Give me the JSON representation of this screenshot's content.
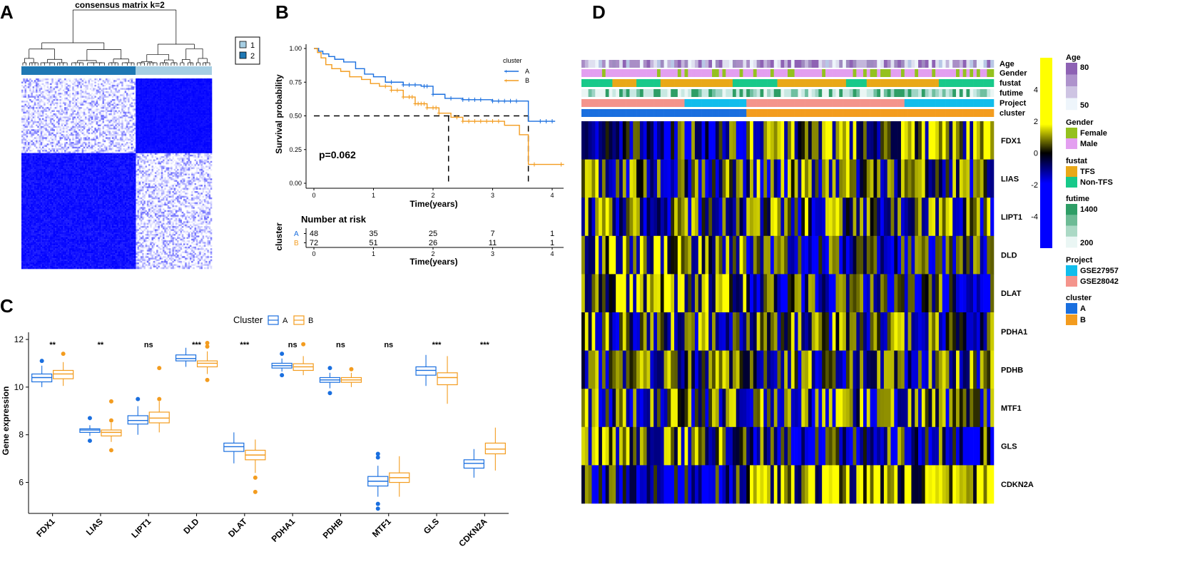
{
  "panels": {
    "A": "A",
    "B": "B",
    "C": "C",
    "D": "D"
  },
  "chart_data": [
    {
      "type": "heatmap",
      "panel": "A",
      "title": "consensus matrix k=2",
      "legend": [
        "1",
        "2"
      ],
      "colors": {
        "cluster1": "#a6cee3",
        "cluster2": "#1f78b4",
        "high": "#0000ff",
        "low": "#ffffff"
      },
      "cluster_sizes": [
        72,
        48
      ]
    },
    {
      "type": "line",
      "panel": "B",
      "subtype": "kaplan-meier",
      "xlabel": "Time(years)",
      "ylabel": "Survival probability",
      "xlim": [
        0,
        4.2
      ],
      "ylim": [
        0,
        1
      ],
      "xticks": [
        "0",
        "1",
        "2",
        "3",
        "4"
      ],
      "yticks": [
        "0.00",
        "0.25",
        "0.50",
        "0.75",
        "1.00"
      ],
      "pvalue": "p=0.062",
      "legend_title": "cluster",
      "series": [
        {
          "name": "A",
          "color": "#1a6fdf",
          "points": [
            [
              0,
              1
            ],
            [
              0.08,
              0.98
            ],
            [
              0.15,
              0.96
            ],
            [
              0.25,
              0.94
            ],
            [
              0.35,
              0.92
            ],
            [
              0.5,
              0.9
            ],
            [
              0.7,
              0.85
            ],
            [
              0.85,
              0.81
            ],
            [
              1.0,
              0.79
            ],
            [
              1.2,
              0.75
            ],
            [
              1.5,
              0.73
            ],
            [
              1.8,
              0.72
            ],
            [
              2.0,
              0.66
            ],
            [
              2.2,
              0.63
            ],
            [
              2.5,
              0.62
            ],
            [
              3.0,
              0.61
            ],
            [
              3.6,
              0.61
            ],
            [
              3.6,
              0.46
            ],
            [
              4.05,
              0.46
            ]
          ],
          "censor": [
            1.3,
            1.5,
            1.6,
            1.7,
            1.85,
            1.9,
            2.0,
            2.3,
            2.5,
            2.6,
            2.7,
            2.8,
            3.0,
            3.1,
            3.2,
            3.3,
            3.4,
            3.8,
            3.9,
            4.0
          ]
        },
        {
          "name": "B",
          "color": "#f39c1f",
          "points": [
            [
              0,
              1
            ],
            [
              0.06,
              0.97
            ],
            [
              0.12,
              0.93
            ],
            [
              0.2,
              0.88
            ],
            [
              0.3,
              0.85
            ],
            [
              0.45,
              0.83
            ],
            [
              0.6,
              0.79
            ],
            [
              0.8,
              0.77
            ],
            [
              0.95,
              0.74
            ],
            [
              1.1,
              0.72
            ],
            [
              1.3,
              0.69
            ],
            [
              1.5,
              0.64
            ],
            [
              1.7,
              0.59
            ],
            [
              1.9,
              0.56
            ],
            [
              2.1,
              0.52
            ],
            [
              2.3,
              0.49
            ],
            [
              2.5,
              0.46
            ],
            [
              3.0,
              0.46
            ],
            [
              3.2,
              0.43
            ],
            [
              3.45,
              0.36
            ],
            [
              3.6,
              0.32
            ],
            [
              3.6,
              0.14
            ],
            [
              4.2,
              0.14
            ]
          ],
          "censor": [
            1.2,
            1.3,
            1.4,
            1.5,
            1.6,
            1.65,
            1.7,
            1.75,
            1.8,
            1.85,
            1.9,
            2.0,
            2.05,
            2.1,
            2.4,
            2.5,
            2.6,
            2.7,
            2.8,
            2.9,
            3.0,
            3.1,
            3.7,
            4.15
          ]
        }
      ],
      "median_lines": {
        "y": 0.5,
        "x": [
          2.26,
          3.6
        ]
      },
      "risk_table": {
        "title": "Number at risk",
        "ylabel": "cluster",
        "xlabel": "Time(years)",
        "times": [
          "0",
          "1",
          "2",
          "3",
          "4"
        ],
        "rows": [
          {
            "group": "A",
            "counts": [
              "48",
              "35",
              "25",
              "7",
              "1"
            ]
          },
          {
            "group": "B",
            "counts": [
              "72",
              "51",
              "26",
              "11",
              "1"
            ]
          }
        ]
      }
    },
    {
      "type": "box",
      "panel": "C",
      "ylabel": "Gene expression",
      "legend_title": "Cluster",
      "legend": [
        "A",
        "B"
      ],
      "ylim": [
        4.7,
        12.3
      ],
      "yticks": [
        "6",
        "8",
        "10",
        "12"
      ],
      "categories": [
        "FDX1",
        "LIAS",
        "LIPT1",
        "DLD",
        "DLAT",
        "PDHA1",
        "PDHB",
        "MTF1",
        "GLS",
        "CDKN2A"
      ],
      "significance": [
        "**",
        "**",
        "ns",
        "***",
        "***",
        "ns",
        "ns",
        "ns",
        "***",
        "***"
      ],
      "series": [
        {
          "name": "A",
          "color": "#1a6fdf",
          "boxes": [
            {
              "min": 10.0,
              "q1": 10.22,
              "median": 10.4,
              "q3": 10.55,
              "max": 10.9,
              "outliers": [
                11.1
              ]
            },
            {
              "min": 7.95,
              "q1": 8.1,
              "median": 8.2,
              "q3": 8.25,
              "max": 8.4,
              "outliers": [
                8.7,
                7.75
              ]
            },
            {
              "min": 8.0,
              "q1": 8.45,
              "median": 8.6,
              "q3": 8.8,
              "max": 9.2,
              "outliers": [
                9.5
              ]
            },
            {
              "min": 10.85,
              "q1": 11.1,
              "median": 11.2,
              "q3": 11.35,
              "max": 11.65,
              "outliers": []
            },
            {
              "min": 6.8,
              "q1": 7.3,
              "median": 7.5,
              "q3": 7.65,
              "max": 8.1,
              "outliers": []
            },
            {
              "min": 10.65,
              "q1": 10.8,
              "median": 10.9,
              "q3": 11.0,
              "max": 11.2,
              "outliers": [
                11.4,
                10.5
              ]
            },
            {
              "min": 9.95,
              "q1": 10.2,
              "median": 10.3,
              "q3": 10.4,
              "max": 10.6,
              "outliers": [
                10.8,
                9.75
              ]
            },
            {
              "min": 5.4,
              "q1": 5.85,
              "median": 6.05,
              "q3": 6.25,
              "max": 6.7,
              "outliers": [
                7.2,
                7.05,
                5.1,
                4.9
              ]
            },
            {
              "min": 10.05,
              "q1": 10.5,
              "median": 10.7,
              "q3": 10.85,
              "max": 11.35,
              "outliers": []
            },
            {
              "min": 6.2,
              "q1": 6.6,
              "median": 6.8,
              "q3": 6.95,
              "max": 7.4,
              "outliers": []
            }
          ]
        },
        {
          "name": "B",
          "color": "#f39c1f",
          "boxes": [
            {
              "min": 10.05,
              "q1": 10.35,
              "median": 10.55,
              "q3": 10.7,
              "max": 11.05,
              "outliers": [
                11.4
              ]
            },
            {
              "min": 7.7,
              "q1": 7.95,
              "median": 8.1,
              "q3": 8.2,
              "max": 8.5,
              "outliers": [
                9.4,
                8.6,
                7.35
              ]
            },
            {
              "min": 8.1,
              "q1": 8.5,
              "median": 8.7,
              "q3": 8.95,
              "max": 9.4,
              "outliers": [
                10.8,
                9.5
              ]
            },
            {
              "min": 10.55,
              "q1": 10.85,
              "median": 11.0,
              "q3": 11.1,
              "max": 11.5,
              "outliers": [
                11.85,
                11.7,
                10.3
              ]
            },
            {
              "min": 6.4,
              "q1": 6.95,
              "median": 7.15,
              "q3": 7.35,
              "max": 7.8,
              "outliers": [
                6.2,
                5.6
              ]
            },
            {
              "min": 10.5,
              "q1": 10.7,
              "median": 10.85,
              "q3": 10.98,
              "max": 11.3,
              "outliers": [
                11.8
              ]
            },
            {
              "min": 10.0,
              "q1": 10.2,
              "median": 10.3,
              "q3": 10.4,
              "max": 10.6,
              "outliers": [
                10.75
              ]
            },
            {
              "min": 5.4,
              "q1": 6.0,
              "median": 6.2,
              "q3": 6.4,
              "max": 7.1,
              "outliers": []
            },
            {
              "min": 9.3,
              "q1": 10.1,
              "median": 10.4,
              "q3": 10.6,
              "max": 11.3,
              "outliers": []
            },
            {
              "min": 6.5,
              "q1": 7.2,
              "median": 7.4,
              "q3": 7.65,
              "max": 8.3,
              "outliers": []
            }
          ]
        }
      ]
    },
    {
      "type": "heatmap",
      "panel": "D",
      "rows": [
        "FDX1",
        "LIAS",
        "LIPT1",
        "DLD",
        "DLAT",
        "PDHA1",
        "PDHB",
        "MTF1",
        "GLS",
        "CDKN2A"
      ],
      "annotation_tracks": [
        "Age",
        "Gender",
        "fustat",
        "futime",
        "Project",
        "cluster"
      ],
      "n_samples": 120,
      "cluster_split": {
        "A": 48,
        "B": 72
      },
      "colorbar": {
        "range": [
          -6,
          6
        ],
        "ticks": [
          "4",
          "2",
          "0",
          "-2",
          "-4"
        ],
        "colors": {
          "high": "#ffff00",
          "mid": "#000000",
          "low": "#0000ff"
        }
      },
      "legends": [
        {
          "title": "Age",
          "items": [
            {
              "label": "80",
              "color": "#8e62b4"
            },
            {
              "label": "50",
              "color": "#eef5fb"
            }
          ]
        },
        {
          "title": "Gender",
          "items": [
            {
              "label": "Female",
              "color": "#94c11f"
            },
            {
              "label": "Male",
              "color": "#e39ff0"
            }
          ]
        },
        {
          "title": "fustat",
          "items": [
            {
              "label": "TFS",
              "color": "#e9a818"
            },
            {
              "label": "Non-TFS",
              "color": "#18c98a"
            }
          ]
        },
        {
          "title": "futime",
          "items": [
            {
              "label": "1400",
              "color": "#2e9e66"
            },
            {
              "label": "200",
              "color": "#eaf6f4"
            }
          ]
        },
        {
          "title": "Project",
          "items": [
            {
              "label": "GSE27957",
              "color": "#12bdec"
            },
            {
              "label": "GSE28042",
              "color": "#f4948c"
            }
          ]
        },
        {
          "title": "cluster",
          "items": [
            {
              "label": "A",
              "color": "#1a6fdf"
            },
            {
              "label": "B",
              "color": "#f39c1f"
            }
          ]
        }
      ]
    }
  ]
}
